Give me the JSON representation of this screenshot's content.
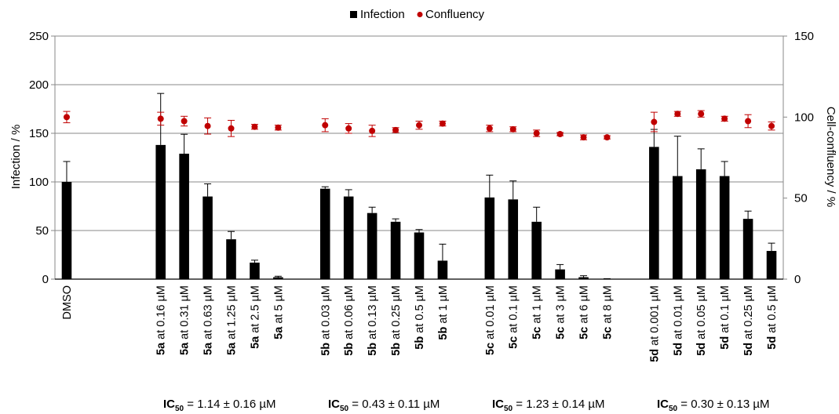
{
  "chart_data": {
    "type": "bar",
    "legend": {
      "placement": "top-center",
      "bar_series": "Infection",
      "point_series": "Confluency"
    },
    "ylabel": "Infection / %",
    "y2label": "Cell-confluency / %",
    "ylim": [
      0,
      250
    ],
    "y2lim": [
      0,
      150
    ],
    "yticks": [
      "0",
      "50",
      "100",
      "150",
      "200",
      "250"
    ],
    "y2ticks": [
      "0",
      "50",
      "100",
      "150"
    ],
    "grid": true,
    "colors": {
      "bars": "#000000",
      "points": "#c00000",
      "grid": "#888888"
    },
    "categories": [
      {
        "bold": "",
        "rest": "DMSO",
        "infection": 100,
        "inf_err": 21,
        "confluency": 100,
        "conf_err": 3.5
      },
      null,
      null,
      null,
      {
        "bold": "5a",
        "rest": " at 0.16 µM",
        "infection": 138,
        "inf_err": 53,
        "confluency": 99,
        "conf_err": 4
      },
      {
        "bold": "5a",
        "rest": " at 0.31 µM",
        "infection": 129,
        "inf_err": 20,
        "confluency": 97.5,
        "conf_err": 3
      },
      {
        "bold": "5a",
        "rest": " at 0.63 µM",
        "infection": 85,
        "inf_err": 13,
        "confluency": 94.5,
        "conf_err": 5
      },
      {
        "bold": "5a",
        "rest": " at 1.25 µM",
        "infection": 41,
        "inf_err": 8,
        "confluency": 93,
        "conf_err": 5
      },
      {
        "bold": "5a",
        "rest": " at 2.5 µM",
        "infection": 17,
        "inf_err": 2.5,
        "confluency": 94,
        "conf_err": 1.5
      },
      {
        "bold": "5a",
        "rest": " at 5 µM",
        "infection": 2,
        "inf_err": 1,
        "confluency": 93.5,
        "conf_err": 1.5
      },
      null,
      {
        "bold": "5b",
        "rest": " at 0.03 µM",
        "infection": 93,
        "inf_err": 2,
        "confluency": 95,
        "conf_err": 4
      },
      {
        "bold": "5b",
        "rest": " at 0.06 µM",
        "infection": 85,
        "inf_err": 7,
        "confluency": 93,
        "conf_err": 3
      },
      {
        "bold": "5b",
        "rest": " at 0.13 µM",
        "infection": 68,
        "inf_err": 6,
        "confluency": 91.5,
        "conf_err": 3.5
      },
      {
        "bold": "5b",
        "rest": " at 0.25 µM",
        "infection": 59,
        "inf_err": 3,
        "confluency": 92,
        "conf_err": 1.5
      },
      {
        "bold": "5b",
        "rest": " at 0.5 µM",
        "infection": 48,
        "inf_err": 3,
        "confluency": 95,
        "conf_err": 2.5
      },
      {
        "bold": "5b",
        "rest": " at 1 µM",
        "infection": 19,
        "inf_err": 17,
        "confluency": 96,
        "conf_err": 1.5
      },
      null,
      {
        "bold": "5c",
        "rest": " at 0.01 µM",
        "infection": 84,
        "inf_err": 23,
        "confluency": 93,
        "conf_err": 2
      },
      {
        "bold": "5c",
        "rest": " at 0.1 µM",
        "infection": 82,
        "inf_err": 19,
        "confluency": 92.5,
        "conf_err": 1.5
      },
      {
        "bold": "5c",
        "rest": " at 1 µM",
        "infection": 59,
        "inf_err": 15,
        "confluency": 90,
        "conf_err": 2
      },
      {
        "bold": "5c",
        "rest": " at 3 µM",
        "infection": 10,
        "inf_err": 5,
        "confluency": 89.5,
        "conf_err": 1
      },
      {
        "bold": "5c",
        "rest": " at 6 µM",
        "infection": 2,
        "inf_err": 1.5,
        "confluency": 87.5,
        "conf_err": 1.5
      },
      {
        "bold": "5c",
        "rest": " at 8 µM",
        "infection": 0,
        "inf_err": 0.5,
        "confluency": 87.5,
        "conf_err": 1
      },
      null,
      {
        "bold": "5d",
        "rest": " at 0.001 µM",
        "infection": 136,
        "inf_err": 18,
        "confluency": 97,
        "conf_err": 6
      },
      {
        "bold": "5d",
        "rest": " at 0.01 µM",
        "infection": 106,
        "inf_err": 41,
        "confluency": 102,
        "conf_err": 1.5
      },
      {
        "bold": "5d",
        "rest": " at 0.05 µM",
        "infection": 113,
        "inf_err": 21,
        "confluency": 102,
        "conf_err": 2
      },
      {
        "bold": "5d",
        "rest": " at 0.1 µM",
        "infection": 106,
        "inf_err": 15,
        "confluency": 99,
        "conf_err": 1.5
      },
      {
        "bold": "5d",
        "rest": " at 0.25 µM",
        "infection": 62,
        "inf_err": 8,
        "confluency": 97.5,
        "conf_err": 4
      },
      {
        "bold": "5d",
        "rest": " at 0.5 µM",
        "infection": 29,
        "inf_err": 8,
        "confluency": 94.5,
        "conf_err": 2.5
      }
    ],
    "annotations": [
      {
        "prefix": "IC",
        "sub": "50",
        "value": " = 1.14 ± 0.16 µM",
        "group_first": 4,
        "group_last": 9
      },
      {
        "prefix": "IC",
        "sub": "50",
        "value": " = 0.43 ± 0.11 µM",
        "group_first": 11,
        "group_last": 16
      },
      {
        "prefix": "IC",
        "sub": "50",
        "value": " = 1.23 ± 0.14 µM",
        "group_first": 18,
        "group_last": 23
      },
      {
        "prefix": "IC",
        "sub": "50",
        "value": " = 0.30 ± 0.13 µM",
        "group_first": 25,
        "group_last": 30
      }
    ]
  }
}
